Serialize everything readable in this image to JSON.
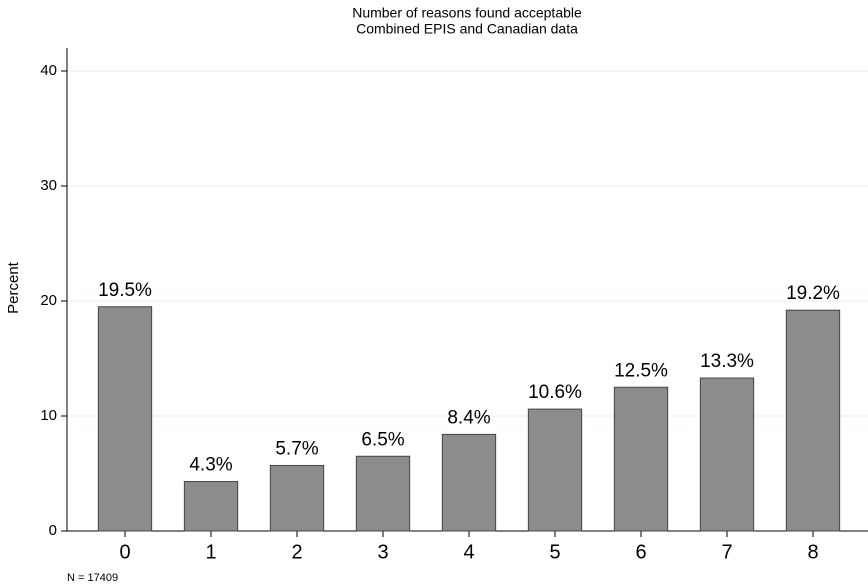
{
  "chart_data": {
    "type": "bar",
    "title": "Number of reasons found acceptable",
    "subtitle": "Combined EPIS and Canadian data",
    "y_label": "Percent",
    "annotation": "N = 17409",
    "categories": [
      "0",
      "1",
      "2",
      "3",
      "4",
      "5",
      "6",
      "7",
      "8"
    ],
    "values": [
      19.5,
      4.3,
      5.7,
      6.5,
      8.4,
      10.6,
      12.5,
      13.3,
      19.2
    ],
    "value_labels": [
      "19.5%",
      "4.3%",
      "5.7%",
      "6.5%",
      "8.4%",
      "10.6%",
      "12.5%",
      "13.3%",
      "19.2%"
    ],
    "color": "#8c8c8c",
    "ylim": [
      0,
      42
    ],
    "yticks": [
      0,
      10,
      20,
      30,
      40
    ],
    "grid": true
  }
}
